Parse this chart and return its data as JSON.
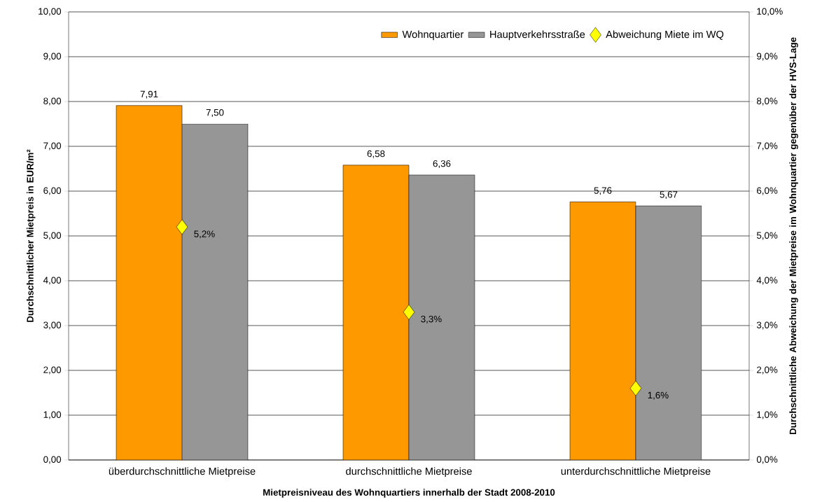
{
  "chart_data": {
    "type": "bar",
    "xlabel": "Mietpreisniveau des Wohnquartiers innerhalb der Stadt 2008-2010",
    "ylabel": "Durchschnittlicher Mietpreis in EUR/m²",
    "y2label": "Durchschnittliche Abweichung der Mietpreise im Wohnquartier gegenüber der HVS-Lage",
    "categories": [
      "überdurchschnittliche Mietpreise",
      "durchschnittliche Mietpreise",
      "unterdurchschnittliche Mietpreise"
    ],
    "series": [
      {
        "name": "Wohnquartier",
        "color": "#ff9900",
        "values": [
          7.91,
          6.58,
          5.76
        ],
        "value_labels": [
          "7,91",
          "6,58",
          "5,76"
        ]
      },
      {
        "name": "Hauptverkehrsstraße",
        "color": "#969696",
        "values": [
          7.5,
          6.36,
          5.67
        ],
        "value_labels": [
          "7,50",
          "6,36",
          "5,67"
        ]
      },
      {
        "name": "Abweichung Miete im WQ",
        "type": "scatter",
        "axis": "y2",
        "marker": "diamond",
        "color": "#ffff00",
        "values": [
          5.2,
          3.3,
          1.6
        ],
        "value_labels": [
          "5,2%",
          "3,3%",
          "1,6%"
        ]
      }
    ],
    "ylim": [
      0,
      10
    ],
    "yticks": [
      {
        "value": 0,
        "label": "0,00"
      },
      {
        "value": 1,
        "label": "1,00"
      },
      {
        "value": 2,
        "label": "2,00"
      },
      {
        "value": 3,
        "label": "3,00"
      },
      {
        "value": 4,
        "label": "4,00"
      },
      {
        "value": 5,
        "label": "5,00"
      },
      {
        "value": 6,
        "label": "6,00"
      },
      {
        "value": 7,
        "label": "7,00"
      },
      {
        "value": 8,
        "label": "8,00"
      },
      {
        "value": 9,
        "label": "9,00"
      },
      {
        "value": 10,
        "label": "10,00"
      }
    ],
    "y2lim": [
      0,
      10
    ],
    "y2ticks": [
      {
        "value": 0,
        "label": "0,0%"
      },
      {
        "value": 1,
        "label": "1,0%"
      },
      {
        "value": 2,
        "label": "2,0%"
      },
      {
        "value": 3,
        "label": "3,0%"
      },
      {
        "value": 4,
        "label": "4,0%"
      },
      {
        "value": 5,
        "label": "5,0%"
      },
      {
        "value": 6,
        "label": "6,0%"
      },
      {
        "value": 7,
        "label": "7,0%"
      },
      {
        "value": 8,
        "label": "8,0%"
      },
      {
        "value": 9,
        "label": "9,0%"
      },
      {
        "value": 10,
        "label": "10,0%"
      }
    ],
    "grid": "y",
    "legend": "top right"
  }
}
